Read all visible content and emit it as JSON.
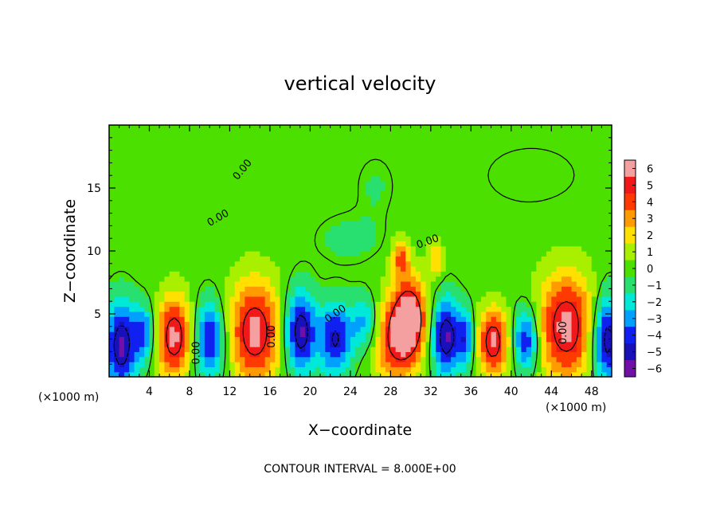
{
  "chart_data": {
    "type": "heatmap",
    "title": "vertical velocity",
    "xlabel": "X−coordinate",
    "ylabel": "Z−coordinate",
    "x_unit_left": "(×1000 m)",
    "x_unit_right": "(×1000 m)",
    "footer": "CONTOUR INTERVAL = 8.000E+00",
    "xlim": [
      0,
      50
    ],
    "ylim": [
      0,
      20
    ],
    "xticks": [
      4,
      8,
      12,
      16,
      20,
      24,
      28,
      32,
      36,
      40,
      44,
      48
    ],
    "xtick_labels": [
      "4",
      "8",
      "12",
      "16",
      "20",
      "24",
      "28",
      "32",
      "36",
      "40",
      "44",
      "48"
    ],
    "yticks": [
      5,
      10,
      15
    ],
    "ytick_labels": [
      "5",
      "10",
      "15"
    ],
    "colorbar": {
      "levels": [
        6,
        5,
        4,
        3,
        2,
        1,
        0,
        -1,
        -2,
        -3,
        -4,
        -5,
        -6
      ],
      "labels": [
        "6",
        "5",
        "4",
        "3",
        "2",
        "1",
        "0",
        "−1",
        "−2",
        "−3",
        "−4",
        "−5",
        "−6"
      ],
      "colors": [
        "#f4a0a0",
        "#f01818",
        "#ff3a00",
        "#ff9a00",
        "#ffe000",
        "#a8f000",
        "#4ce000",
        "#28e070",
        "#00e8d8",
        "#00a0ff",
        "#1020f0",
        "#1810b8",
        "#7010a8"
      ]
    },
    "contour_labels": [
      {
        "text": "0.00",
        "x": 22.7,
        "y": 4.8,
        "angle": -35
      },
      {
        "text": "0.00",
        "x": 9.0,
        "y": 1.9,
        "angle": -90
      },
      {
        "text": "0.00",
        "x": 16.5,
        "y": 3.2,
        "angle": -90
      },
      {
        "text": "0.00",
        "x": 45.5,
        "y": 3.5,
        "angle": -90
      },
      {
        "text": "0.00",
        "x": 11.0,
        "y": 12.4,
        "angle": -30
      },
      {
        "text": "0.00",
        "x": 13.5,
        "y": 16.3,
        "angle": -50
      },
      {
        "text": "0.00",
        "x": 31.8,
        "y": 10.5,
        "angle": -20
      }
    ],
    "features": [
      {
        "x": 1.2,
        "z": 2.5,
        "rx": 1.5,
        "rz": 3.4,
        "w": -6
      },
      {
        "x": 3.5,
        "z": 3.5,
        "rx": 1.0,
        "rz": 2.2,
        "w": -4
      },
      {
        "x": 6.5,
        "z": 3.2,
        "rx": 1.8,
        "rz": 3.2,
        "w": 6
      },
      {
        "x": 10.0,
        "z": 3.0,
        "rx": 1.6,
        "rz": 3.0,
        "w": -5
      },
      {
        "x": 14.5,
        "z": 3.6,
        "rx": 2.6,
        "rz": 4.0,
        "w": 6
      },
      {
        "x": 19.0,
        "z": 3.6,
        "rx": 1.5,
        "rz": 3.2,
        "w": -6
      },
      {
        "x": 22.5,
        "z": 3.0,
        "rx": 1.6,
        "rz": 2.8,
        "w": -5
      },
      {
        "x": 25.5,
        "z": 4.3,
        "rx": 1.5,
        "rz": 2.2,
        "w": -3
      },
      {
        "x": 28.5,
        "z": 3.0,
        "rx": 2.2,
        "rz": 3.4,
        "w": 5
      },
      {
        "x": 30.0,
        "z": 4.8,
        "rx": 1.6,
        "rz": 3.0,
        "w": 6
      },
      {
        "x": 29.0,
        "z": 9.5,
        "rx": 0.8,
        "rz": 1.6,
        "w": 4
      },
      {
        "x": 32.5,
        "z": 9.3,
        "rx": 0.7,
        "rz": 1.4,
        "w": 3
      },
      {
        "x": 33.5,
        "z": 3.2,
        "rx": 1.4,
        "rz": 3.0,
        "w": -6
      },
      {
        "x": 35.5,
        "z": 3.0,
        "rx": 0.8,
        "rz": 2.2,
        "w": -4
      },
      {
        "x": 38.2,
        "z": 2.8,
        "rx": 1.5,
        "rz": 2.6,
        "w": 6
      },
      {
        "x": 41.5,
        "z": 3.0,
        "rx": 1.2,
        "rz": 2.5,
        "w": -5
      },
      {
        "x": 45.5,
        "z": 4.0,
        "rx": 2.8,
        "rz": 4.2,
        "w": 6
      },
      {
        "x": 49.5,
        "z": 3.0,
        "rx": 1.5,
        "rz": 3.4,
        "w": -6
      },
      {
        "x": 24.0,
        "z": 11.0,
        "rx": 3.5,
        "rz": 2.0,
        "w": -0.8
      },
      {
        "x": 26.5,
        "z": 15.2,
        "rx": 2.0,
        "rz": 2.5,
        "w": -0.6
      },
      {
        "x": 42.0,
        "z": 16.0,
        "rx": 6.0,
        "rz": 3.0,
        "w": -0.5
      }
    ]
  }
}
